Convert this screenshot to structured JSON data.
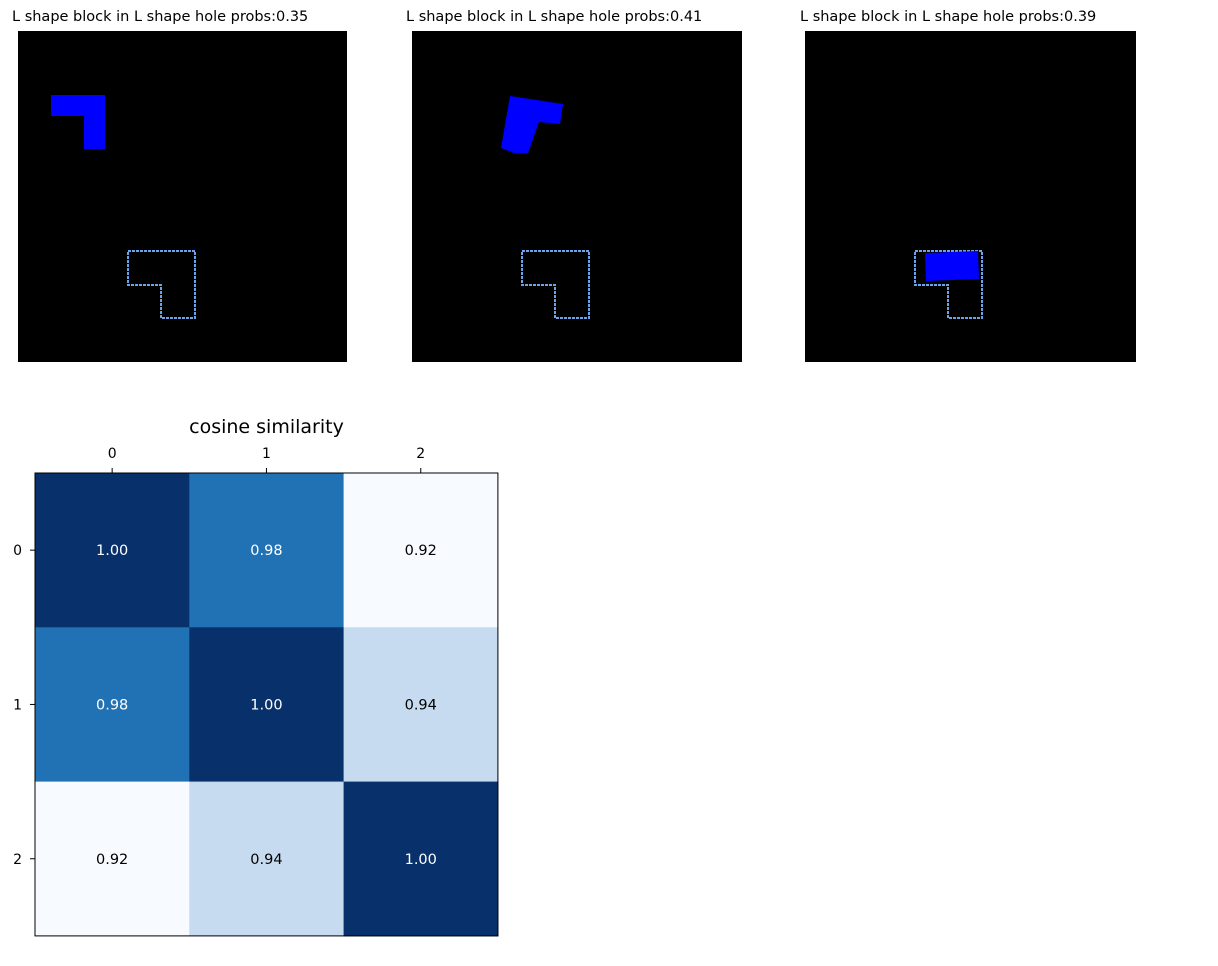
{
  "panels": [
    {
      "title": "L shape block in L shape hole probs:0.35",
      "block_color": "#0000ff",
      "hole_color": "#6aa3e8"
    },
    {
      "title": "L shape block in L shape hole probs:0.41",
      "block_color": "#0000ff",
      "hole_color": "#6aa3e8"
    },
    {
      "title": "L shape block in L shape hole probs:0.39",
      "block_color": "#0000ff",
      "hole_color": "#6aa3e8"
    }
  ],
  "chart_data": {
    "type": "heatmap",
    "title": "cosine similarity",
    "x_ticks": [
      "0",
      "1",
      "2"
    ],
    "y_ticks": [
      "0",
      "1",
      "2"
    ],
    "values": [
      [
        1.0,
        0.98,
        0.92
      ],
      [
        0.98,
        1.0,
        0.94
      ],
      [
        0.92,
        0.94,
        1.0
      ]
    ],
    "labels": [
      [
        "1.00",
        "0.98",
        "0.92"
      ],
      [
        "0.98",
        "1.00",
        "0.94"
      ],
      [
        "0.92",
        "0.94",
        "1.00"
      ]
    ],
    "colormap": "Blues",
    "colors": {
      "dark": "#08306b",
      "mid": "#2171b5",
      "light": "#c6dbef",
      "lightest": "#f7fbff"
    }
  }
}
